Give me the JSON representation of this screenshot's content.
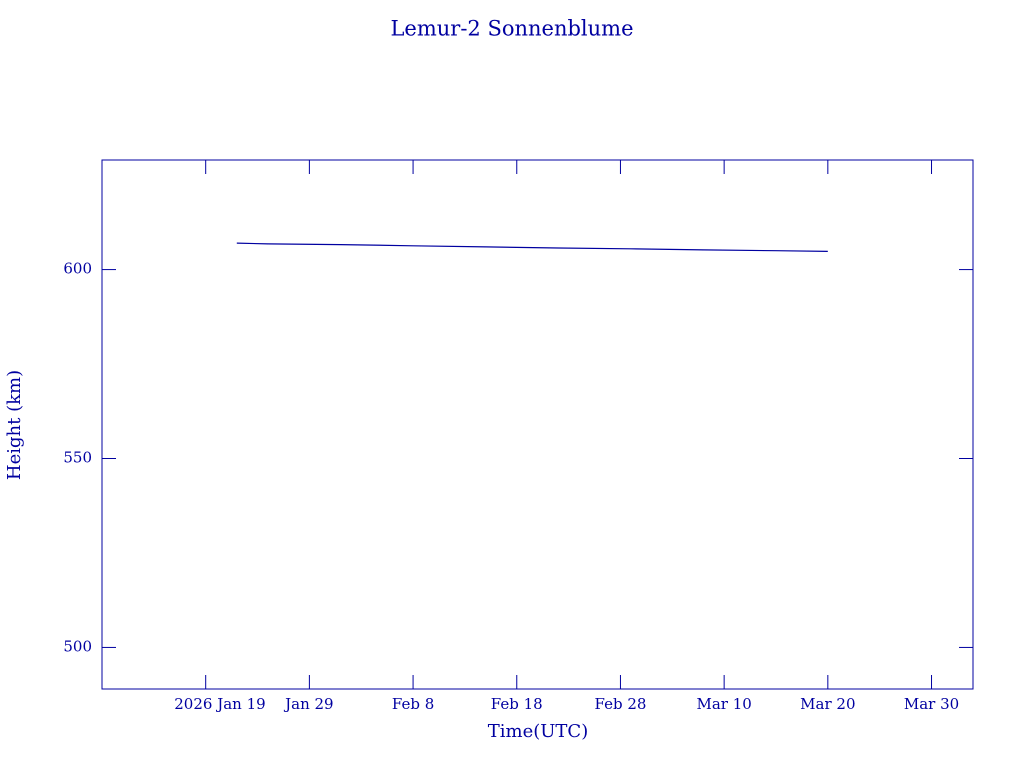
{
  "chart_data": {
    "type": "line",
    "title": "Lemur-2 Sonnenblume",
    "x_label": "Time(UTC)",
    "y_label": "Height (km)",
    "x": [
      "2026-01-22",
      "2026-01-25",
      "2026-02-01",
      "2026-02-08",
      "2026-02-15",
      "2026-02-22",
      "2026-03-01",
      "2026-03-08",
      "2026-03-15",
      "2026-03-20"
    ],
    "series": [
      {
        "color": "#0000a0",
        "values": [
          607.0,
          606.8,
          606.6,
          606.3,
          606.0,
          605.7,
          605.5,
          605.2,
          605.0,
          604.8
        ]
      }
    ],
    "xlim": [
      "2026-01-09",
      "2026-04-03"
    ],
    "xticks": [
      {
        "value": "2026-01-19",
        "label": "2026 Jan 19"
      },
      {
        "value": "2026-01-29",
        "label": "Jan 29"
      },
      {
        "value": "2026-02-08",
        "label": "Feb 8"
      },
      {
        "value": "2026-02-18",
        "label": "Feb 18"
      },
      {
        "value": "2026-02-28",
        "label": "Feb 28"
      },
      {
        "value": "2026-03-10",
        "label": "Mar 10"
      },
      {
        "value": "2026-03-20",
        "label": "Mar 20"
      },
      {
        "value": "2026-03-30",
        "label": "Mar 30"
      }
    ],
    "ylim": [
      489,
      629
    ],
    "yticks": [
      500,
      550,
      600
    ]
  }
}
